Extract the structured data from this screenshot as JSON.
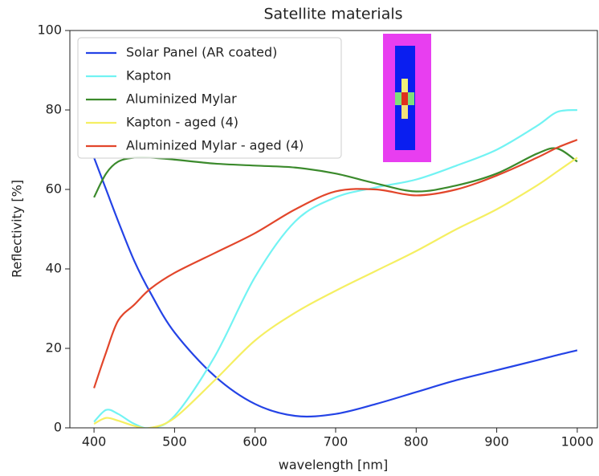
{
  "chart_data": {
    "type": "line",
    "title": "Satellite materials",
    "xlabel": "wavelength [nm]",
    "ylabel": "Reflectivity [%]",
    "x": [
      400,
      415,
      430,
      450,
      470,
      500,
      550,
      600,
      650,
      700,
      750,
      800,
      850,
      900,
      950,
      975,
      1000
    ],
    "series": [
      {
        "name": "Solar Panel (AR coated)",
        "color": "#2443e6",
        "values": [
          68,
          60,
          52,
          42,
          34,
          24,
          13,
          6,
          3,
          3.5,
          6,
          9,
          12,
          14.5,
          17,
          18.3,
          19.5
        ]
      },
      {
        "name": "Kapton",
        "color": "#72f3f3",
        "values": [
          1.5,
          4.5,
          3.5,
          1,
          0,
          3,
          18,
          38,
          52,
          58,
          60.5,
          62.5,
          66,
          70,
          76,
          79.5,
          80
        ]
      },
      {
        "name": "Aluminized Mylar",
        "color": "#3b8a2c",
        "values": [
          58,
          64,
          67,
          68,
          68,
          67.5,
          66.5,
          66,
          65.5,
          64,
          61.5,
          59.5,
          61,
          64,
          69,
          70.3,
          67
        ]
      },
      {
        "name": "Kapton - aged (4)",
        "color": "#f5ef62",
        "values": [
          1,
          2.5,
          1.8,
          0.5,
          0,
          2.5,
          12,
          22,
          29,
          34.5,
          39.5,
          44.5,
          50,
          55,
          61,
          64.5,
          68
        ]
      },
      {
        "name": "Aluminized Mylar - aged (4)",
        "color": "#e2462b",
        "values": [
          10,
          19,
          27,
          31,
          35,
          39,
          44,
          49,
          55,
          59.5,
          60,
          58.5,
          60,
          63.5,
          68,
          70.5,
          72.5
        ]
      }
    ],
    "xlim": [
      370,
      1025
    ],
    "ylim": [
      0,
      100
    ],
    "xticks": [
      400,
      500,
      600,
      700,
      800,
      900,
      1000
    ],
    "yticks": [
      0,
      20,
      40,
      60,
      80,
      100
    ],
    "grid": false,
    "legend": "upper left"
  }
}
